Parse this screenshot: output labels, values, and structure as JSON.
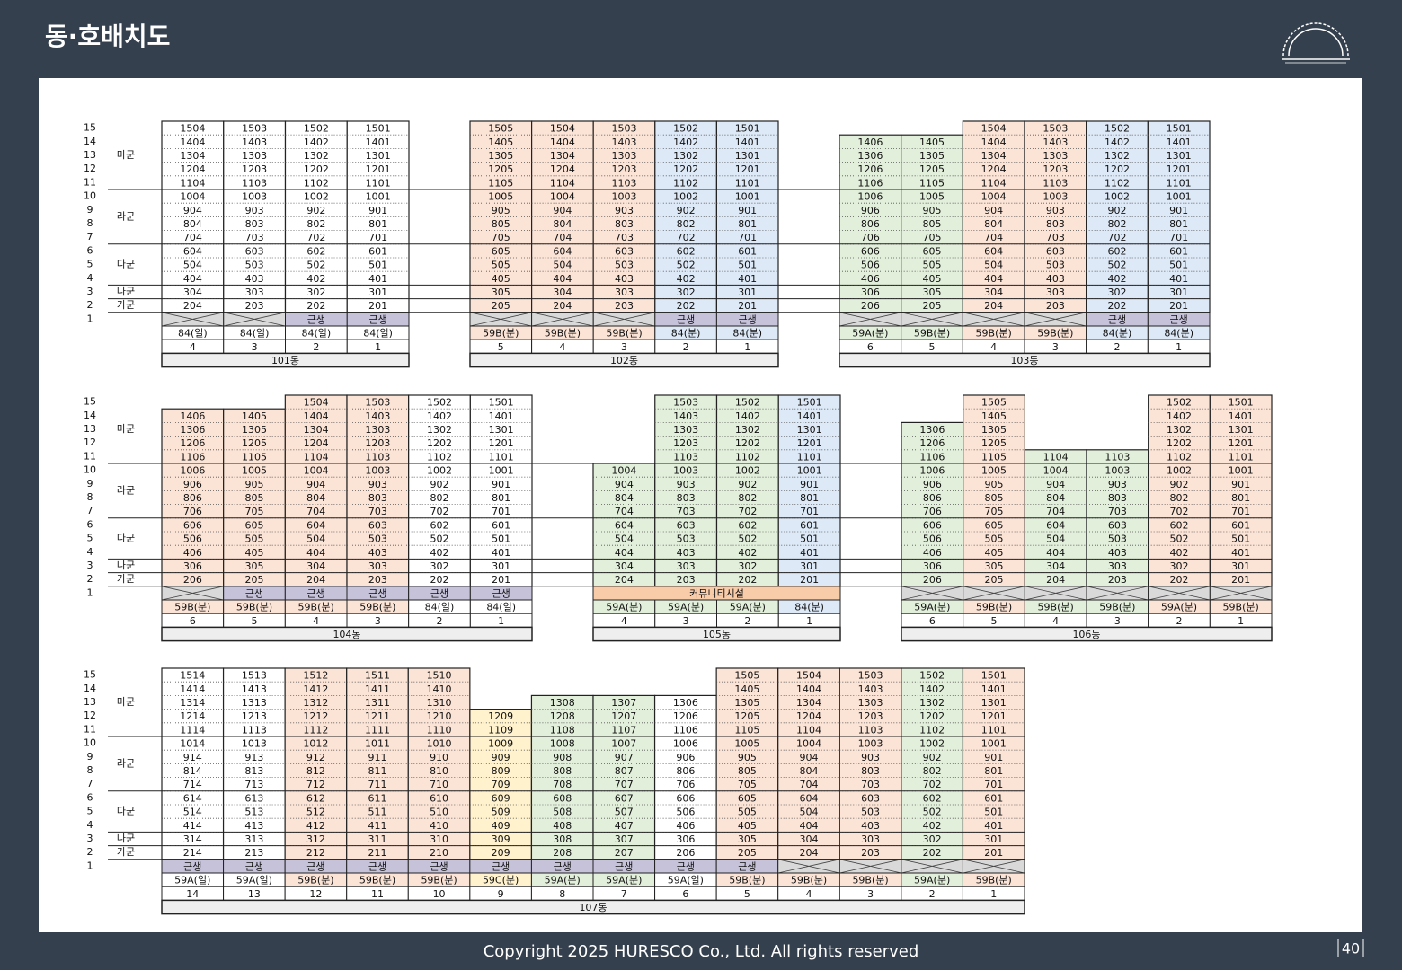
{
  "header": {
    "title": "동·호배치도"
  },
  "floor_labels": [
    15,
    14,
    13,
    12,
    11,
    10,
    9,
    8,
    7,
    6,
    5,
    4,
    3,
    2,
    1
  ],
  "groups": [
    "마군",
    "라군",
    "다군",
    "나군",
    "가군"
  ],
  "buildings": [
    {
      "name": "101동",
      "units": [
        {
          "line": 4,
          "type": "84(일)",
          "ground": null,
          "color": "#ffffff",
          "rooms": [
            1504,
            1404,
            1304,
            1204,
            1104,
            1004,
            904,
            804,
            704,
            604,
            504,
            404,
            304,
            204
          ]
        },
        {
          "line": 3,
          "type": "84(일)",
          "ground": null,
          "color": "#ffffff",
          "rooms": [
            1503,
            1403,
            1303,
            1203,
            1103,
            1003,
            903,
            803,
            703,
            603,
            503,
            403,
            303,
            203
          ]
        },
        {
          "line": 2,
          "type": "84(일)",
          "ground": "근생",
          "color": "#ffffff",
          "rooms": [
            1502,
            1402,
            1302,
            1202,
            1102,
            1002,
            902,
            802,
            702,
            602,
            502,
            402,
            302,
            202
          ]
        },
        {
          "line": 1,
          "type": "84(일)",
          "ground": "근생",
          "color": "#ffffff",
          "rooms": [
            1501,
            1401,
            1301,
            1201,
            1101,
            1001,
            901,
            801,
            701,
            601,
            501,
            401,
            301,
            201
          ]
        }
      ]
    },
    {
      "name": "102동",
      "units": [
        {
          "line": 5,
          "type": "59B(분)",
          "ground": null,
          "color": "#fbe3d6",
          "rooms": [
            1505,
            1405,
            1305,
            1205,
            1105,
            1005,
            905,
            805,
            705,
            605,
            505,
            405,
            305,
            205
          ]
        },
        {
          "line": 4,
          "type": "59B(분)",
          "ground": null,
          "color": "#fbe3d6",
          "rooms": [
            1504,
            1404,
            1304,
            1204,
            1104,
            1004,
            904,
            804,
            704,
            604,
            504,
            404,
            304,
            204
          ]
        },
        {
          "line": 3,
          "type": "59B(분)",
          "ground": null,
          "color": "#fbe3d6",
          "rooms": [
            1503,
            1403,
            1303,
            1203,
            1103,
            1003,
            903,
            803,
            703,
            603,
            503,
            403,
            303,
            203
          ]
        },
        {
          "line": 2,
          "type": "84(분)",
          "ground": "근생",
          "color": "#dde9f7",
          "rooms": [
            1502,
            1402,
            1302,
            1202,
            1102,
            1002,
            902,
            802,
            702,
            602,
            502,
            402,
            302,
            202
          ]
        },
        {
          "line": 1,
          "type": "84(분)",
          "ground": "근생",
          "color": "#dde9f7",
          "rooms": [
            1501,
            1401,
            1301,
            1201,
            1101,
            1001,
            901,
            801,
            701,
            601,
            501,
            401,
            301,
            201
          ]
        }
      ]
    },
    {
      "name": "103동",
      "units": [
        {
          "line": 6,
          "type": "59A(분)",
          "ground": null,
          "color": "#e2efda",
          "rooms": [
            1406,
            1306,
            1206,
            1106,
            1006,
            906,
            806,
            706,
            606,
            506,
            406,
            306,
            206
          ]
        },
        {
          "line": 5,
          "type": "59B(분)",
          "ground": null,
          "color": "#e2efda",
          "rooms": [
            1405,
            1305,
            1205,
            1105,
            1005,
            905,
            805,
            705,
            605,
            505,
            405,
            305,
            205
          ]
        },
        {
          "line": 4,
          "type": "59B(분)",
          "ground": null,
          "color": "#fbe3d6",
          "rooms": [
            1504,
            1404,
            1304,
            1204,
            1104,
            1004,
            904,
            804,
            704,
            604,
            504,
            404,
            304,
            204
          ]
        },
        {
          "line": 3,
          "type": "59B(분)",
          "ground": null,
          "color": "#fbe3d6",
          "rooms": [
            1503,
            1403,
            1303,
            1203,
            1103,
            1003,
            903,
            803,
            703,
            603,
            503,
            403,
            303,
            203
          ]
        },
        {
          "line": 2,
          "type": "84(분)",
          "ground": "근생",
          "color": "#dde9f7",
          "rooms": [
            1502,
            1402,
            1302,
            1202,
            1102,
            1002,
            902,
            802,
            702,
            602,
            502,
            402,
            302,
            202
          ]
        },
        {
          "line": 1,
          "type": "84(분)",
          "ground": "근생",
          "color": "#dde9f7",
          "rooms": [
            1501,
            1401,
            1301,
            1201,
            1101,
            1001,
            901,
            801,
            701,
            601,
            501,
            401,
            301,
            201
          ]
        }
      ]
    },
    {
      "name": "104동",
      "units": [
        {
          "line": 6,
          "type": "59B(분)",
          "ground": null,
          "color": "#fbe3d6",
          "rooms": [
            1406,
            1306,
            1206,
            1106,
            1006,
            906,
            806,
            706,
            606,
            506,
            406,
            306,
            206
          ]
        },
        {
          "line": 5,
          "type": "59B(분)",
          "ground": "근생",
          "color": "#fbe3d6",
          "rooms": [
            1405,
            1305,
            1205,
            1105,
            1005,
            905,
            805,
            705,
            605,
            505,
            405,
            305,
            205
          ]
        },
        {
          "line": 4,
          "type": "59B(분)",
          "ground": "근생",
          "color": "#fbe3d6",
          "rooms": [
            1504,
            1404,
            1304,
            1204,
            1104,
            1004,
            904,
            804,
            704,
            604,
            504,
            404,
            304,
            204
          ]
        },
        {
          "line": 3,
          "type": "59B(분)",
          "ground": "근생",
          "color": "#fbe3d6",
          "rooms": [
            1503,
            1403,
            1303,
            1203,
            1103,
            1003,
            903,
            803,
            703,
            603,
            503,
            403,
            303,
            203
          ]
        },
        {
          "line": 2,
          "type": "84(일)",
          "ground": "근생",
          "color": "#ffffff",
          "rooms": [
            1502,
            1402,
            1302,
            1202,
            1102,
            1002,
            902,
            802,
            702,
            602,
            502,
            402,
            302,
            202
          ]
        },
        {
          "line": 1,
          "type": "84(일)",
          "ground": "근생",
          "color": "#ffffff",
          "rooms": [
            1501,
            1401,
            1301,
            1201,
            1101,
            1001,
            901,
            801,
            701,
            601,
            501,
            401,
            301,
            201
          ]
        }
      ]
    },
    {
      "name": "105동",
      "ground": "커뮤니티시설",
      "units": [
        {
          "line": 4,
          "type": "59A(분)",
          "color": "#e2efda",
          "rooms": [
            1004,
            904,
            804,
            704,
            604,
            504,
            404,
            304,
            204
          ]
        },
        {
          "line": 3,
          "type": "59A(분)",
          "color": "#e2efda",
          "rooms": [
            1503,
            1403,
            1303,
            1203,
            1103,
            1003,
            903,
            803,
            703,
            603,
            503,
            403,
            303,
            203
          ]
        },
        {
          "line": 2,
          "type": "59A(분)",
          "color": "#e2efda",
          "rooms": [
            1502,
            1402,
            1302,
            1202,
            1102,
            1002,
            902,
            802,
            702,
            602,
            502,
            402,
            302,
            202
          ]
        },
        {
          "line": 1,
          "type": "84(분)",
          "color": "#dde9f7",
          "rooms": [
            1501,
            1401,
            1301,
            1201,
            1101,
            1001,
            901,
            801,
            701,
            601,
            501,
            401,
            301,
            201
          ]
        }
      ]
    },
    {
      "name": "106동",
      "units": [
        {
          "line": 6,
          "type": "59A(분)",
          "ground": null,
          "color": "#e2efda",
          "rooms": [
            1306,
            1206,
            1106,
            1006,
            906,
            806,
            706,
            606,
            506,
            406,
            306,
            206
          ]
        },
        {
          "line": 5,
          "type": "59B(분)",
          "ground": null,
          "color": "#fbe3d6",
          "rooms": [
            1505,
            1405,
            1305,
            1205,
            1105,
            1005,
            905,
            805,
            705,
            605,
            505,
            405,
            305,
            205
          ]
        },
        {
          "line": 4,
          "type": "59B(분)",
          "ground": null,
          "color": "#e2efda",
          "rooms": [
            1104,
            1004,
            904,
            804,
            704,
            604,
            504,
            404,
            304,
            204
          ]
        },
        {
          "line": 3,
          "type": "59B(분)",
          "ground": null,
          "color": "#e2efda",
          "rooms": [
            1103,
            1003,
            903,
            803,
            703,
            603,
            503,
            403,
            303,
            203
          ]
        },
        {
          "line": 2,
          "type": "59A(분)",
          "ground": null,
          "color": "#fbe3d6",
          "rooms": [
            1502,
            1402,
            1302,
            1202,
            1102,
            1002,
            902,
            802,
            702,
            602,
            502,
            402,
            302,
            202
          ]
        },
        {
          "line": 1,
          "type": "59B(분)",
          "ground": null,
          "color": "#fbe3d6",
          "rooms": [
            1501,
            1401,
            1301,
            1201,
            1101,
            1001,
            901,
            801,
            701,
            601,
            501,
            401,
            301,
            201
          ]
        }
      ]
    },
    {
      "name": "107동",
      "units": [
        {
          "line": 14,
          "type": "59A(일)",
          "ground": "근생",
          "color": "#ffffff",
          "rooms": [
            1514,
            1414,
            1314,
            1214,
            1114,
            1014,
            914,
            814,
            714,
            614,
            514,
            414,
            314,
            214
          ]
        },
        {
          "line": 13,
          "type": "59A(일)",
          "ground": "근생",
          "color": "#ffffff",
          "rooms": [
            1513,
            1413,
            1313,
            1213,
            1113,
            1013,
            913,
            813,
            713,
            613,
            513,
            413,
            313,
            213
          ]
        },
        {
          "line": 12,
          "type": "59B(분)",
          "ground": "근생",
          "color": "#fbe3d6",
          "rooms": [
            1512,
            1412,
            1312,
            1212,
            1112,
            1012,
            912,
            812,
            712,
            612,
            512,
            412,
            312,
            212
          ]
        },
        {
          "line": 11,
          "type": "59B(분)",
          "ground": "근생",
          "color": "#fbe3d6",
          "rooms": [
            1511,
            1411,
            1311,
            1211,
            1111,
            1011,
            911,
            811,
            711,
            611,
            511,
            411,
            311,
            211
          ]
        },
        {
          "line": 10,
          "type": "59B(분)",
          "ground": "근생",
          "color": "#fbe3d6",
          "rooms": [
            1510,
            1410,
            1310,
            1210,
            1110,
            1010,
            910,
            810,
            710,
            610,
            510,
            410,
            310,
            210
          ]
        },
        {
          "line": 9,
          "type": "59C(분)",
          "ground": "근생",
          "color": "#fff2cc",
          "rooms": [
            1209,
            1109,
            1009,
            909,
            809,
            709,
            609,
            509,
            409,
            309,
            209
          ]
        },
        {
          "line": 8,
          "type": "59A(분)",
          "ground": "근생",
          "color": "#e2efda",
          "rooms": [
            1308,
            1208,
            1108,
            1008,
            908,
            808,
            708,
            608,
            508,
            408,
            308,
            208
          ]
        },
        {
          "line": 7,
          "type": "59A(분)",
          "ground": "근생",
          "color": "#e2efda",
          "rooms": [
            1307,
            1207,
            1107,
            1007,
            907,
            807,
            707,
            607,
            507,
            407,
            307,
            207
          ]
        },
        {
          "line": 6,
          "type": "59A(일)",
          "ground": "근생",
          "color": "#ffffff",
          "rooms": [
            1306,
            1206,
            1106,
            1006,
            906,
            806,
            706,
            606,
            506,
            406,
            306,
            206
          ]
        },
        {
          "line": 5,
          "type": "59B(분)",
          "ground": "근생",
          "color": "#fbe3d6",
          "rooms": [
            1505,
            1405,
            1305,
            1205,
            1105,
            1005,
            905,
            805,
            705,
            605,
            505,
            405,
            305,
            205
          ]
        },
        {
          "line": 4,
          "type": "59B(분)",
          "ground": null,
          "color": "#fbe3d6",
          "rooms": [
            1504,
            1404,
            1304,
            1204,
            1104,
            1004,
            904,
            804,
            704,
            604,
            504,
            404,
            304,
            204
          ]
        },
        {
          "line": 3,
          "type": "59B(분)",
          "ground": null,
          "color": "#fbe3d6",
          "rooms": [
            1503,
            1403,
            1303,
            1203,
            1103,
            1003,
            903,
            803,
            703,
            603,
            503,
            403,
            303,
            203
          ]
        },
        {
          "line": 2,
          "type": "59A(분)",
          "ground": null,
          "color": "#e2efda",
          "rooms": [
            1502,
            1402,
            1302,
            1202,
            1102,
            1002,
            902,
            802,
            702,
            602,
            502,
            402,
            302,
            202
          ]
        },
        {
          "line": 1,
          "type": "59B(분)",
          "ground": null,
          "color": "#fbe3d6",
          "rooms": [
            1501,
            1401,
            1301,
            1201,
            1101,
            1001,
            901,
            801,
            701,
            601,
            501,
            401,
            301,
            201
          ]
        }
      ]
    }
  ],
  "footer": {
    "copyright": "Copyright 2025 HURESCO Co., Ltd. All rights reserved",
    "page": "40"
  }
}
